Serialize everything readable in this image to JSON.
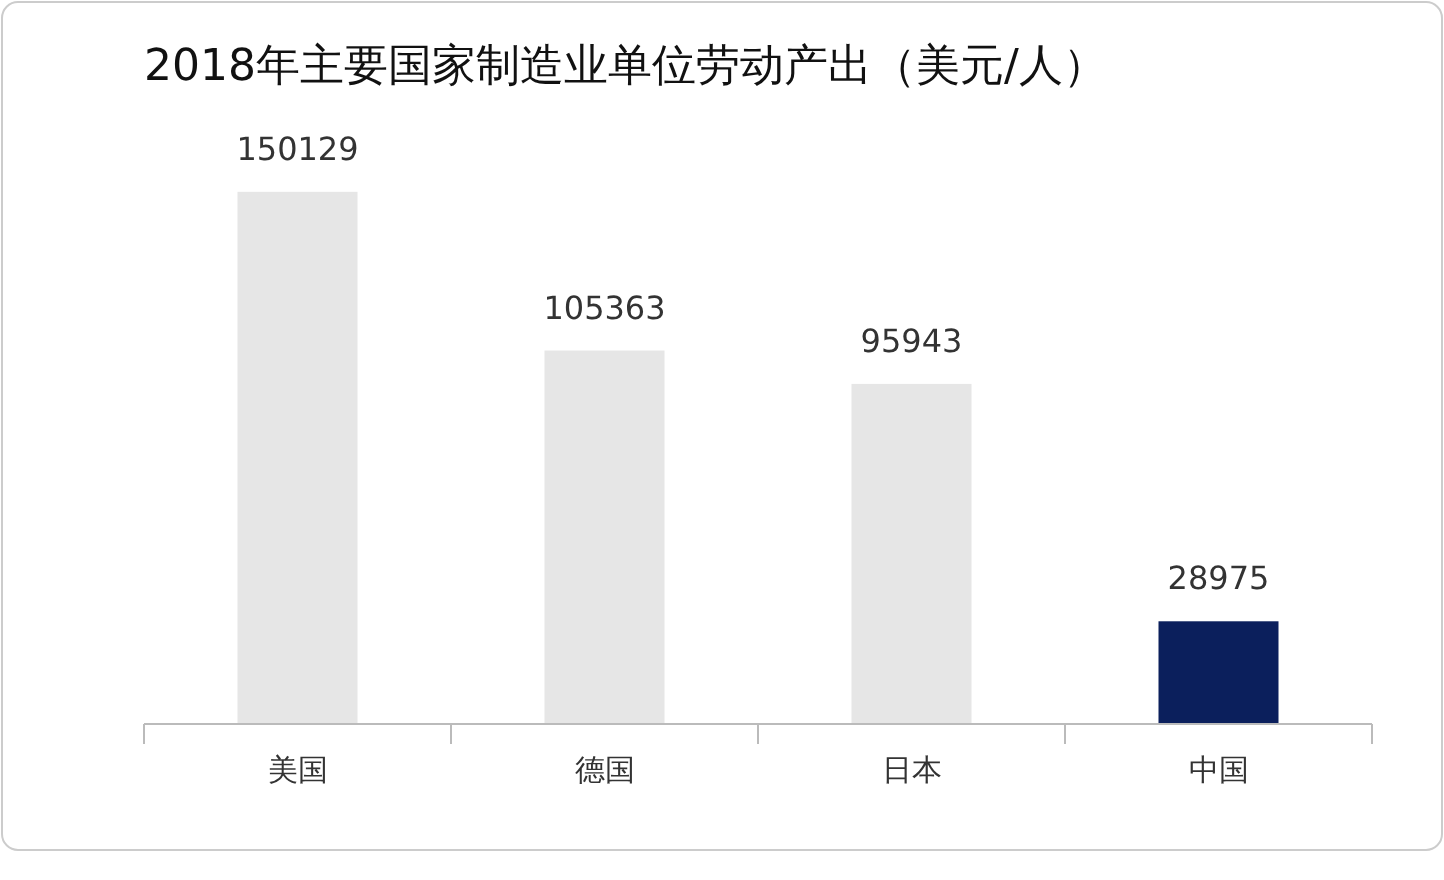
{
  "chart_data": {
    "type": "bar",
    "title": "2018年主要国家制造业单位劳动产出（美元/人）",
    "categories": [
      "美国",
      "德国",
      "日本",
      "中国"
    ],
    "values": [
      150129,
      105363,
      95943,
      28975
    ],
    "colors": [
      "#e6e6e6",
      "#e6e6e6",
      "#e6e6e6",
      "#0b1f5c"
    ],
    "data_labels": true
  }
}
